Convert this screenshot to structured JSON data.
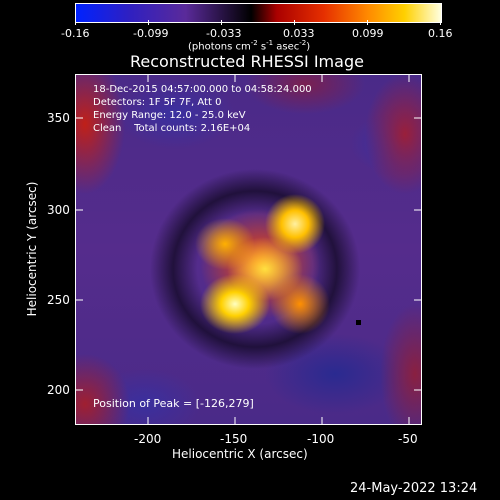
{
  "colorbar": {
    "tick_labels": [
      "-0.16",
      "-0.099",
      "-0.033",
      "0.033",
      "0.099",
      "0.16"
    ],
    "units_text": "(photons cm",
    "units_exp1": "-2",
    "units_mid1": " s",
    "units_exp2": "-1",
    "units_mid2": " asec",
    "units_exp3": "-2",
    "units_close": ")",
    "gradient_stops": [
      "#0022ff",
      "#3020c0",
      "#5a2a9a",
      "#000000",
      "#cc1010",
      "#ff7a00",
      "#ffd000",
      "#ffffe0"
    ]
  },
  "plot": {
    "title": "Reconstructed RHESSI Image",
    "xlabel": "Heliocentric X (arcsec)",
    "ylabel": "Heliocentric Y (arcsec)",
    "x_ticks": [
      "-200",
      "-150",
      "-100",
      "-50"
    ],
    "y_ticks": [
      "200",
      "250",
      "300",
      "350"
    ]
  },
  "overlay": {
    "line1": "18-Dec-2015 04:57:00.000 to 04:58:24.000",
    "line2": "Detectors: 1F 5F 7F, Att 0",
    "line3": "Energy Range: 12.0 - 25.0 keV",
    "line4": "Clean    Total counts: 2.16E+04",
    "peak": "Position of Peak = [-126,279]"
  },
  "footer": {
    "timestamp": "24-May-2022 13:24"
  },
  "chart_data": {
    "type": "heatmap",
    "title": "Reconstructed RHESSI Image",
    "xlabel": "Heliocentric X (arcsec)",
    "ylabel": "Heliocentric Y (arcsec)",
    "xlim": [
      -240,
      -50
    ],
    "ylim": [
      185,
      375
    ],
    "x_ticks": [
      -200,
      -150,
      -100,
      -50
    ],
    "y_ticks": [
      200,
      250,
      300,
      350
    ],
    "colorbar_range": [
      -0.16,
      0.16
    ],
    "colorbar_ticks": [
      -0.16,
      -0.099,
      -0.033,
      0.033,
      0.099,
      0.16
    ],
    "peak_position": [
      -126,
      279
    ]
  }
}
